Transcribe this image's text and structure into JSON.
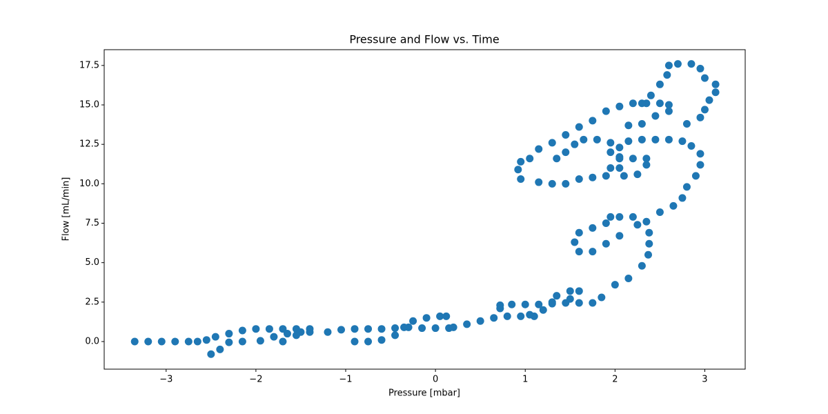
{
  "chart_data": {
    "type": "scatter",
    "title": "Pressure and Flow vs. Time",
    "x_label": "Pressure [mbar]",
    "y_label": "Flow [mL/min]",
    "color": "#1f77b4",
    "x": [
      -3.35,
      -3.2,
      -3.05,
      -2.9,
      -2.75,
      -2.65,
      -2.55,
      -2.45,
      -2.3,
      -2.15,
      -2.0,
      -1.85,
      -1.7,
      -1.55,
      -1.4,
      -1.5,
      -1.65,
      -1.8,
      -1.95,
      -2.15,
      -2.3,
      -2.4,
      -2.5,
      -1.7,
      -1.55,
      -1.4,
      -1.2,
      -1.05,
      -0.9,
      -0.75,
      -0.6,
      -0.45,
      -0.3,
      -0.15,
      0.0,
      0.15,
      -0.9,
      -0.75,
      -0.6,
      -0.45,
      -0.35,
      -0.25,
      -0.1,
      0.05,
      0.12,
      0.2,
      0.35,
      0.5,
      0.65,
      0.8,
      0.95,
      1.1,
      0.72,
      0.72,
      0.85,
      1.0,
      1.15,
      1.3,
      1.45,
      1.6,
      1.75,
      1.85,
      2.0,
      2.15,
      2.3,
      2.37,
      2.38,
      2.38,
      2.35,
      1.35,
      1.5,
      1.6,
      1.5,
      1.3,
      1.2,
      1.05,
      2.2,
      2.05,
      1.95,
      1.9,
      1.75,
      1.6,
      1.55,
      1.6,
      1.75,
      1.9,
      2.05,
      2.25,
      2.5,
      2.65,
      2.75,
      2.8,
      2.9,
      2.95,
      2.95,
      2.85,
      2.75,
      2.6,
      2.45,
      2.3,
      2.15,
      2.05,
      2.05,
      2.05,
      2.1,
      2.25,
      2.35,
      2.35,
      2.2,
      2.05,
      1.95,
      1.95,
      1.8,
      1.65,
      1.55,
      1.45,
      1.35,
      1.95,
      1.9,
      1.75,
      1.6,
      1.45,
      1.3,
      1.15,
      0.95,
      0.92,
      0.95,
      1.05,
      1.15,
      1.3,
      1.45,
      1.6,
      1.75,
      1.9,
      2.05,
      2.2,
      2.35,
      2.5,
      2.6,
      2.6,
      2.45,
      2.3,
      2.15,
      2.8,
      2.95,
      3.0,
      3.05,
      3.12,
      3.12,
      3.0,
      2.95,
      2.85,
      2.7,
      2.6,
      2.58,
      2.5,
      2.4,
      2.3
    ],
    "values": [
      0,
      0,
      0,
      0,
      0,
      0,
      0.1,
      0.3,
      0.5,
      0.7,
      0.8,
      0.8,
      0.8,
      0.8,
      0.8,
      0.6,
      0.5,
      0.3,
      0.05,
      0,
      -0.05,
      -0.5,
      -0.8,
      0,
      0.4,
      0.6,
      0.6,
      0.75,
      0.8,
      0.8,
      0.8,
      0.85,
      0.9,
      0.85,
      0.85,
      0.85,
      0,
      0,
      0.1,
      0.4,
      0.9,
      1.3,
      1.5,
      1.6,
      1.6,
      0.9,
      1.1,
      1.3,
      1.5,
      1.6,
      1.6,
      1.6,
      2.1,
      2.3,
      2.35,
      2.35,
      2.35,
      2.4,
      2.45,
      2.45,
      2.45,
      2.8,
      3.6,
      4.0,
      4.8,
      5.5,
      6.2,
      6.9,
      7.6,
      2.9,
      3.2,
      3.2,
      2.7,
      2.5,
      2.0,
      1.7,
      7.9,
      7.9,
      7.9,
      7.5,
      7.2,
      6.9,
      6.3,
      5.7,
      5.7,
      6.2,
      6.7,
      7.4,
      8.2,
      8.6,
      9.1,
      9.8,
      10.5,
      11.2,
      11.9,
      12.4,
      12.7,
      12.8,
      12.8,
      12.8,
      12.7,
      12.3,
      11.7,
      11.0,
      10.5,
      10.6,
      11.2,
      11.6,
      11.6,
      11.6,
      12.0,
      12.6,
      12.8,
      12.8,
      12.5,
      12.0,
      11.6,
      11.0,
      10.5,
      10.4,
      10.3,
      10.0,
      10.0,
      10.1,
      10.3,
      10.9,
      11.4,
      11.6,
      12.2,
      12.6,
      13.1,
      13.6,
      14.0,
      14.6,
      14.9,
      15.1,
      15.1,
      15.1,
      15.0,
      14.6,
      14.3,
      13.8,
      13.7,
      13.8,
      14.2,
      14.7,
      15.3,
      15.8,
      16.3,
      16.7,
      17.3,
      17.6,
      17.6,
      17.5,
      16.9,
      16.3,
      15.6,
      15.1
    ],
    "xlim": [
      -3.69,
      3.45
    ],
    "ylim": [
      -1.75,
      18.5
    ],
    "xticks": [
      {
        "value": -3,
        "label": "−3"
      },
      {
        "value": -2,
        "label": "−2"
      },
      {
        "value": -1,
        "label": "−1"
      },
      0,
      1,
      2,
      3
    ],
    "yticks": [
      {
        "value": 0,
        "label": "0.0"
      },
      2.5,
      {
        "value": 5,
        "label": "5.0"
      },
      7.5,
      {
        "value": 10,
        "label": "10.0"
      },
      12.5,
      {
        "value": 15,
        "label": "15.0"
      },
      17.5
    ]
  }
}
